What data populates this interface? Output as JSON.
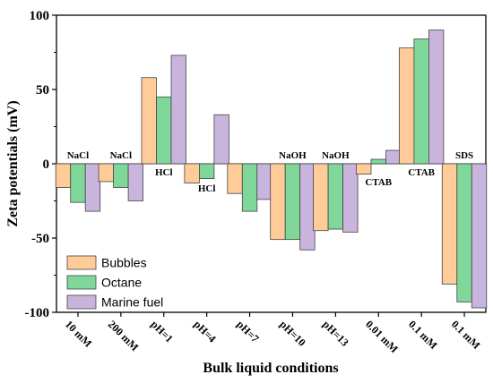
{
  "chart_data": {
    "type": "bar",
    "xlabel": "Bulk liquid conditions",
    "ylabel": "Zeta potentials (mV)",
    "ylim": [
      -100,
      100
    ],
    "yticks": [
      -100,
      -50,
      0,
      50,
      100
    ],
    "grid": false,
    "legend_position": "bottom-left",
    "categories": [
      "10 mM",
      "200 mM",
      "pH=1",
      "pH=4",
      "pH=7",
      "pH=10",
      "pH=13",
      "0.01 mM",
      "0.1 mM",
      "0.1 mM"
    ],
    "annotations": [
      "NaCl",
      "NaCl",
      "HCl",
      "HCl",
      "",
      "NaOH",
      "NaOH",
      "CTAB",
      "CTAB",
      "SDS"
    ],
    "series": [
      {
        "name": "Bubbles",
        "color": "#FFCC99",
        "values": [
          -16,
          -12,
          58,
          -13,
          -20,
          -51,
          -45,
          -7,
          78,
          -81
        ]
      },
      {
        "name": "Octane",
        "color": "#7FD89A",
        "values": [
          -26,
          -16,
          45,
          -10,
          -32,
          -51,
          -44,
          3,
          84,
          -93
        ]
      },
      {
        "name": "Marine fuel",
        "color": "#C9B4DD",
        "values": [
          -32,
          -25,
          73,
          33,
          -24,
          -58,
          -46,
          9,
          90,
          -97
        ]
      }
    ]
  }
}
